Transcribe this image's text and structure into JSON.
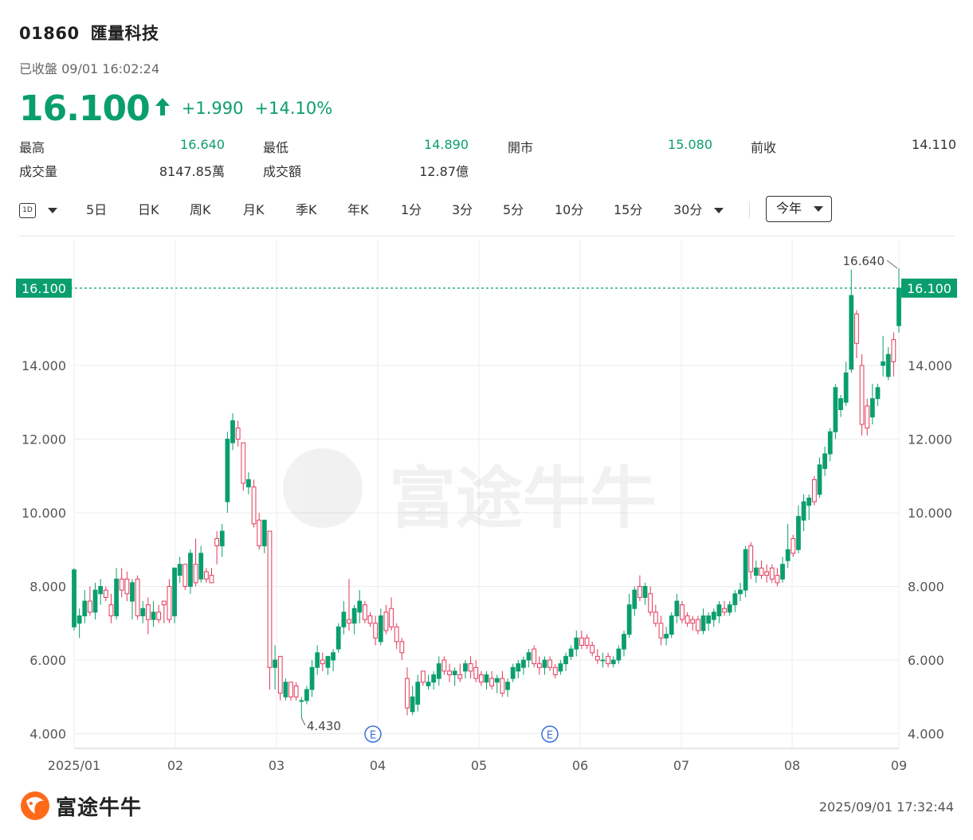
{
  "header": {
    "code": "01860",
    "name": "匯量科技",
    "status": "已收盤 09/01 16:02:24",
    "price": "16.100",
    "change": "+1.990",
    "change_pct": "+14.10%",
    "up_color": "#0a9e6e",
    "down_color": "#e3385a"
  },
  "stats": {
    "high_label": "最高",
    "high": "16.640",
    "low_label": "最低",
    "low": "14.890",
    "open_label": "開市",
    "open": "15.080",
    "prev_label": "前收",
    "prev": "14.110",
    "volume_label": "成交量",
    "volume": "8147.85萬",
    "turnover_label": "成交額",
    "turnover": "12.87億"
  },
  "toolbar": {
    "interval_icon": "1D",
    "tabs": [
      "5日",
      "日K",
      "周K",
      "月K",
      "季K",
      "年K",
      "1分",
      "3分",
      "5分",
      "10分",
      "15分",
      "30分"
    ],
    "range": "今年"
  },
  "chart_data": {
    "type": "candlestick",
    "y_ticks": [
      "4.000",
      "6.000",
      "8.000",
      "10.000",
      "12.000",
      "14.000"
    ],
    "ylim": [
      3.6,
      17.2
    ],
    "x_ticks": [
      "2025/01",
      "02",
      "03",
      "04",
      "05",
      "06",
      "07",
      "08",
      "09"
    ],
    "grid": true,
    "last_price_label": "16.100",
    "max_label": "16.640",
    "min_label": "4.430",
    "event_markers": [
      "E",
      "E"
    ],
    "candles": [
      {
        "o": 6.9,
        "h": 8.5,
        "l": 6.8,
        "c": 8.45
      },
      {
        "o": 7.0,
        "h": 7.4,
        "l": 6.6,
        "c": 7.2
      },
      {
        "o": 7.2,
        "h": 7.9,
        "l": 7.0,
        "c": 7.6
      },
      {
        "o": 7.6,
        "h": 8.0,
        "l": 7.2,
        "c": 7.3
      },
      {
        "o": 7.3,
        "h": 8.1,
        "l": 7.1,
        "c": 7.9
      },
      {
        "o": 7.8,
        "h": 8.2,
        "l": 7.5,
        "c": 8.0
      },
      {
        "o": 7.9,
        "h": 8.0,
        "l": 7.6,
        "c": 7.7
      },
      {
        "o": 7.5,
        "h": 7.8,
        "l": 7.0,
        "c": 7.2
      },
      {
        "o": 7.2,
        "h": 8.5,
        "l": 7.1,
        "c": 8.2
      },
      {
        "o": 8.2,
        "h": 8.5,
        "l": 7.7,
        "c": 7.9
      },
      {
        "o": 8.2,
        "h": 8.4,
        "l": 7.6,
        "c": 7.8
      },
      {
        "o": 7.6,
        "h": 8.2,
        "l": 7.1,
        "c": 8.1
      },
      {
        "o": 8.2,
        "h": 8.3,
        "l": 7.1,
        "c": 7.2
      },
      {
        "o": 7.2,
        "h": 7.6,
        "l": 7.0,
        "c": 7.4
      },
      {
        "o": 7.5,
        "h": 7.7,
        "l": 6.7,
        "c": 7.1
      },
      {
        "o": 7.1,
        "h": 7.6,
        "l": 6.9,
        "c": 7.3
      },
      {
        "o": 7.3,
        "h": 7.5,
        "l": 7.0,
        "c": 7.1
      },
      {
        "o": 7.6,
        "h": 7.6,
        "l": 7.0,
        "c": 7.5
      },
      {
        "o": 8.0,
        "h": 8.2,
        "l": 7.0,
        "c": 7.1
      },
      {
        "o": 7.2,
        "h": 8.5,
        "l": 7.0,
        "c": 8.5
      },
      {
        "o": 8.3,
        "h": 8.8,
        "l": 8.1,
        "c": 8.6
      },
      {
        "o": 8.6,
        "h": 8.6,
        "l": 7.9,
        "c": 8.0
      },
      {
        "o": 8.0,
        "h": 9.0,
        "l": 7.8,
        "c": 8.9
      },
      {
        "o": 8.6,
        "h": 9.3,
        "l": 8.0,
        "c": 8.1
      },
      {
        "o": 8.2,
        "h": 9.1,
        "l": 8.1,
        "c": 8.9
      },
      {
        "o": 8.4,
        "h": 8.5,
        "l": 8.1,
        "c": 8.2
      },
      {
        "o": 8.3,
        "h": 8.5,
        "l": 8.1,
        "c": 8.1
      },
      {
        "o": 9.3,
        "h": 9.5,
        "l": 8.6,
        "c": 9.1
      },
      {
        "o": 9.1,
        "h": 9.7,
        "l": 8.8,
        "c": 9.5
      },
      {
        "o": 10.3,
        "h": 12.2,
        "l": 10.0,
        "c": 12.0
      },
      {
        "o": 11.9,
        "h": 12.7,
        "l": 11.7,
        "c": 12.5
      },
      {
        "o": 12.3,
        "h": 12.5,
        "l": 11.8,
        "c": 12.0
      },
      {
        "o": 11.9,
        "h": 11.9,
        "l": 10.6,
        "c": 10.8
      },
      {
        "o": 10.7,
        "h": 11.1,
        "l": 10.5,
        "c": 10.9
      },
      {
        "o": 10.7,
        "h": 10.9,
        "l": 9.6,
        "c": 9.7
      },
      {
        "o": 9.8,
        "h": 10.0,
        "l": 9.0,
        "c": 9.1
      },
      {
        "o": 9.1,
        "h": 9.8,
        "l": 8.9,
        "c": 9.8
      },
      {
        "o": 9.5,
        "h": 9.5,
        "l": 5.2,
        "c": 5.8
      },
      {
        "o": 5.8,
        "h": 6.4,
        "l": 5.2,
        "c": 6.0
      },
      {
        "o": 6.1,
        "h": 6.1,
        "l": 4.9,
        "c": 5.1
      },
      {
        "o": 5.0,
        "h": 5.5,
        "l": 4.9,
        "c": 5.4
      },
      {
        "o": 5.4,
        "h": 5.4,
        "l": 4.9,
        "c": 5.0
      },
      {
        "o": 5.3,
        "h": 5.4,
        "l": 4.9,
        "c": 5.0
      },
      {
        "o": 4.9,
        "h": 5.0,
        "l": 4.43,
        "c": 4.9
      },
      {
        "o": 4.9,
        "h": 5.3,
        "l": 4.8,
        "c": 5.2
      },
      {
        "o": 5.2,
        "h": 6.0,
        "l": 5.0,
        "c": 5.8
      },
      {
        "o": 5.8,
        "h": 6.4,
        "l": 5.6,
        "c": 6.2
      },
      {
        "o": 6.0,
        "h": 6.2,
        "l": 5.7,
        "c": 5.9
      },
      {
        "o": 5.8,
        "h": 6.1,
        "l": 5.6,
        "c": 6.1
      },
      {
        "o": 6.0,
        "h": 6.3,
        "l": 5.7,
        "c": 6.2
      },
      {
        "o": 6.3,
        "h": 7.0,
        "l": 6.2,
        "c": 6.9
      },
      {
        "o": 6.9,
        "h": 7.6,
        "l": 6.7,
        "c": 7.3
      },
      {
        "o": 7.1,
        "h": 8.2,
        "l": 6.8,
        "c": 7.0
      },
      {
        "o": 7.0,
        "h": 7.5,
        "l": 6.7,
        "c": 7.4
      },
      {
        "o": 7.3,
        "h": 7.9,
        "l": 7.0,
        "c": 7.6
      },
      {
        "o": 7.5,
        "h": 7.6,
        "l": 7.0,
        "c": 7.1
      },
      {
        "o": 7.2,
        "h": 7.3,
        "l": 6.9,
        "c": 7.0
      },
      {
        "o": 7.0,
        "h": 7.2,
        "l": 6.4,
        "c": 6.6
      },
      {
        "o": 6.5,
        "h": 7.4,
        "l": 6.4,
        "c": 7.2
      },
      {
        "o": 7.3,
        "h": 7.5,
        "l": 6.7,
        "c": 6.8
      },
      {
        "o": 7.4,
        "h": 7.7,
        "l": 6.8,
        "c": 6.9
      },
      {
        "o": 6.9,
        "h": 7.0,
        "l": 6.3,
        "c": 6.5
      },
      {
        "o": 6.5,
        "h": 6.6,
        "l": 6.0,
        "c": 6.2
      },
      {
        "o": 5.5,
        "h": 5.8,
        "l": 4.5,
        "c": 4.7
      },
      {
        "o": 4.6,
        "h": 5.3,
        "l": 4.5,
        "c": 5.0
      },
      {
        "o": 4.8,
        "h": 5.6,
        "l": 4.6,
        "c": 5.4
      },
      {
        "o": 5.7,
        "h": 5.7,
        "l": 5.3,
        "c": 5.4
      },
      {
        "o": 5.3,
        "h": 5.6,
        "l": 5.2,
        "c": 5.4
      },
      {
        "o": 5.4,
        "h": 5.7,
        "l": 5.2,
        "c": 5.6
      },
      {
        "o": 5.5,
        "h": 6.1,
        "l": 5.3,
        "c": 5.9
      },
      {
        "o": 6.0,
        "h": 6.1,
        "l": 5.6,
        "c": 5.7
      },
      {
        "o": 5.7,
        "h": 5.9,
        "l": 5.4,
        "c": 5.6
      },
      {
        "o": 5.6,
        "h": 5.8,
        "l": 5.3,
        "c": 5.7
      },
      {
        "o": 5.6,
        "h": 5.9,
        "l": 5.4,
        "c": 5.5
      },
      {
        "o": 5.7,
        "h": 6.0,
        "l": 5.5,
        "c": 5.9
      },
      {
        "o": 5.9,
        "h": 6.1,
        "l": 5.5,
        "c": 5.7
      },
      {
        "o": 5.8,
        "h": 6.0,
        "l": 5.4,
        "c": 5.5
      },
      {
        "o": 5.6,
        "h": 5.7,
        "l": 5.3,
        "c": 5.4
      },
      {
        "o": 5.4,
        "h": 5.7,
        "l": 5.2,
        "c": 5.6
      },
      {
        "o": 5.5,
        "h": 5.7,
        "l": 5.2,
        "c": 5.3
      },
      {
        "o": 5.4,
        "h": 5.6,
        "l": 5.1,
        "c": 5.5
      },
      {
        "o": 5.5,
        "h": 5.7,
        "l": 5.0,
        "c": 5.1
      },
      {
        "o": 5.2,
        "h": 5.5,
        "l": 5.0,
        "c": 5.4
      },
      {
        "o": 5.5,
        "h": 5.9,
        "l": 5.4,
        "c": 5.8
      },
      {
        "o": 5.7,
        "h": 6.0,
        "l": 5.5,
        "c": 5.9
      },
      {
        "o": 5.8,
        "h": 6.1,
        "l": 5.6,
        "c": 6.0
      },
      {
        "o": 6.0,
        "h": 6.3,
        "l": 5.8,
        "c": 6.2
      },
      {
        "o": 6.3,
        "h": 6.4,
        "l": 5.8,
        "c": 5.9
      },
      {
        "o": 5.9,
        "h": 6.1,
        "l": 5.6,
        "c": 5.8
      },
      {
        "o": 5.8,
        "h": 6.1,
        "l": 5.6,
        "c": 6.0
      },
      {
        "o": 6.0,
        "h": 6.1,
        "l": 5.7,
        "c": 5.8
      },
      {
        "o": 5.8,
        "h": 5.9,
        "l": 5.5,
        "c": 5.6
      },
      {
        "o": 5.7,
        "h": 6.0,
        "l": 5.6,
        "c": 5.9
      },
      {
        "o": 5.9,
        "h": 6.2,
        "l": 5.7,
        "c": 6.1
      },
      {
        "o": 6.1,
        "h": 6.4,
        "l": 6.0,
        "c": 6.3
      },
      {
        "o": 6.3,
        "h": 6.8,
        "l": 6.1,
        "c": 6.6
      },
      {
        "o": 6.6,
        "h": 6.8,
        "l": 6.3,
        "c": 6.4
      },
      {
        "o": 6.6,
        "h": 6.7,
        "l": 6.3,
        "c": 6.4
      },
      {
        "o": 6.4,
        "h": 6.5,
        "l": 6.1,
        "c": 6.2
      },
      {
        "o": 6.1,
        "h": 6.3,
        "l": 5.9,
        "c": 6.0
      },
      {
        "o": 6.0,
        "h": 6.2,
        "l": 5.8,
        "c": 6.0
      },
      {
        "o": 6.1,
        "h": 6.2,
        "l": 5.8,
        "c": 5.9
      },
      {
        "o": 5.9,
        "h": 6.1,
        "l": 5.8,
        "c": 6.0
      },
      {
        "o": 6.0,
        "h": 6.4,
        "l": 5.9,
        "c": 6.3
      },
      {
        "o": 6.3,
        "h": 6.8,
        "l": 6.1,
        "c": 6.7
      },
      {
        "o": 6.7,
        "h": 7.8,
        "l": 6.6,
        "c": 7.5
      },
      {
        "o": 7.4,
        "h": 8.0,
        "l": 7.2,
        "c": 7.9
      },
      {
        "o": 8.0,
        "h": 8.3,
        "l": 7.6,
        "c": 7.7
      },
      {
        "o": 7.7,
        "h": 8.1,
        "l": 7.5,
        "c": 8.0
      },
      {
        "o": 7.8,
        "h": 8.0,
        "l": 7.2,
        "c": 7.3
      },
      {
        "o": 7.3,
        "h": 7.5,
        "l": 6.9,
        "c": 7.0
      },
      {
        "o": 7.0,
        "h": 7.2,
        "l": 6.4,
        "c": 6.6
      },
      {
        "o": 6.6,
        "h": 6.9,
        "l": 6.4,
        "c": 6.7
      },
      {
        "o": 6.7,
        "h": 7.3,
        "l": 6.6,
        "c": 7.2
      },
      {
        "o": 7.2,
        "h": 7.8,
        "l": 7.0,
        "c": 7.6
      },
      {
        "o": 7.5,
        "h": 7.6,
        "l": 7.0,
        "c": 7.1
      },
      {
        "o": 7.2,
        "h": 7.3,
        "l": 6.9,
        "c": 7.0
      },
      {
        "o": 7.1,
        "h": 7.2,
        "l": 6.8,
        "c": 7.0
      },
      {
        "o": 7.1,
        "h": 7.2,
        "l": 6.7,
        "c": 6.8
      },
      {
        "o": 6.8,
        "h": 7.4,
        "l": 6.7,
        "c": 7.2
      },
      {
        "o": 7.0,
        "h": 7.3,
        "l": 6.8,
        "c": 7.2
      },
      {
        "o": 7.1,
        "h": 7.4,
        "l": 6.9,
        "c": 7.3
      },
      {
        "o": 7.2,
        "h": 7.6,
        "l": 7.0,
        "c": 7.5
      },
      {
        "o": 7.4,
        "h": 7.6,
        "l": 7.2,
        "c": 7.3
      },
      {
        "o": 7.3,
        "h": 7.6,
        "l": 7.2,
        "c": 7.5
      },
      {
        "o": 7.5,
        "h": 7.9,
        "l": 7.3,
        "c": 7.8
      },
      {
        "o": 7.8,
        "h": 8.1,
        "l": 7.6,
        "c": 7.9
      },
      {
        "o": 7.9,
        "h": 9.1,
        "l": 7.7,
        "c": 9.0
      },
      {
        "o": 9.1,
        "h": 9.2,
        "l": 8.2,
        "c": 8.4
      },
      {
        "o": 8.3,
        "h": 8.7,
        "l": 8.1,
        "c": 8.5
      },
      {
        "o": 8.5,
        "h": 8.7,
        "l": 8.2,
        "c": 8.3
      },
      {
        "o": 8.4,
        "h": 8.6,
        "l": 8.1,
        "c": 8.3
      },
      {
        "o": 8.5,
        "h": 8.6,
        "l": 8.1,
        "c": 8.2
      },
      {
        "o": 8.3,
        "h": 8.5,
        "l": 8.0,
        "c": 8.1
      },
      {
        "o": 8.2,
        "h": 8.8,
        "l": 8.1,
        "c": 8.6
      },
      {
        "o": 8.7,
        "h": 9.7,
        "l": 8.5,
        "c": 9.0
      },
      {
        "o": 9.3,
        "h": 9.4,
        "l": 8.8,
        "c": 8.9
      },
      {
        "o": 9.0,
        "h": 10.2,
        "l": 8.9,
        "c": 9.9
      },
      {
        "o": 9.8,
        "h": 10.5,
        "l": 9.5,
        "c": 10.3
      },
      {
        "o": 10.2,
        "h": 10.5,
        "l": 9.8,
        "c": 10.4
      },
      {
        "o": 10.9,
        "h": 11.0,
        "l": 10.2,
        "c": 10.3
      },
      {
        "o": 10.5,
        "h": 11.5,
        "l": 10.4,
        "c": 11.3
      },
      {
        "o": 11.2,
        "h": 11.8,
        "l": 11.0,
        "c": 11.6
      },
      {
        "o": 11.6,
        "h": 12.3,
        "l": 11.4,
        "c": 12.2
      },
      {
        "o": 12.2,
        "h": 13.5,
        "l": 12.0,
        "c": 13.4
      },
      {
        "o": 12.8,
        "h": 13.2,
        "l": 12.6,
        "c": 13.1
      },
      {
        "o": 13.0,
        "h": 14.1,
        "l": 12.9,
        "c": 13.8
      },
      {
        "o": 13.9,
        "h": 16.6,
        "l": 13.8,
        "c": 15.9
      },
      {
        "o": 15.4,
        "h": 15.5,
        "l": 14.2,
        "c": 14.6
      },
      {
        "o": 14.0,
        "h": 14.3,
        "l": 12.1,
        "c": 12.4
      },
      {
        "o": 12.9,
        "h": 13.1,
        "l": 12.1,
        "c": 12.3
      },
      {
        "o": 12.6,
        "h": 13.5,
        "l": 12.4,
        "c": 13.1
      },
      {
        "o": 13.1,
        "h": 13.5,
        "l": 12.9,
        "c": 13.4
      },
      {
        "o": 14.0,
        "h": 14.8,
        "l": 13.7,
        "c": 14.1
      },
      {
        "o": 13.7,
        "h": 14.5,
        "l": 13.6,
        "c": 14.3
      },
      {
        "o": 14.7,
        "h": 14.9,
        "l": 13.7,
        "c": 14.1
      },
      {
        "o": 15.08,
        "h": 16.64,
        "l": 14.89,
        "c": 16.1
      }
    ]
  },
  "watermark": "富途牛牛",
  "footer": {
    "brand": "富途牛牛",
    "timestamp": "2025/09/01 17:32:44"
  }
}
